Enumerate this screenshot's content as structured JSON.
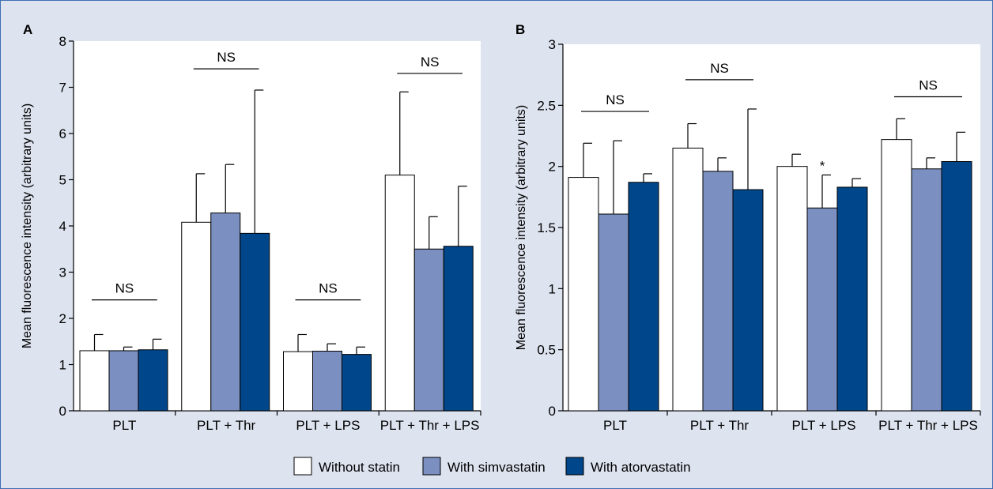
{
  "legend": [
    {
      "label": "Without statin",
      "color": "#ffffff"
    },
    {
      "label": "With simvastatin",
      "color": "#7b8fc0"
    },
    {
      "label": "With atorvastatin",
      "color": "#00468b"
    }
  ],
  "chart_data": [
    {
      "panel": "A",
      "type": "bar",
      "ylabel": "Mean fluorescence intensity (arbitrary units)",
      "ylim": [
        0,
        8
      ],
      "yticks": [
        "0",
        "1",
        "2",
        "3",
        "4",
        "5",
        "6",
        "7",
        "8"
      ],
      "categories": [
        "PLT",
        "PLT + Thr",
        "PLT + LPS",
        "PLT + Thr + LPS"
      ],
      "series": [
        {
          "name": "Without statin",
          "values": [
            1.3,
            4.08,
            1.28,
            5.1
          ],
          "errors": [
            0.35,
            1.05,
            0.37,
            1.8
          ]
        },
        {
          "name": "With simvastatin",
          "values": [
            1.3,
            4.28,
            1.29,
            3.5
          ],
          "errors": [
            0.08,
            1.05,
            0.16,
            0.7
          ]
        },
        {
          "name": "With atorvastatin",
          "values": [
            1.32,
            3.84,
            1.22,
            3.56
          ],
          "errors": [
            0.23,
            3.1,
            0.16,
            1.3
          ]
        }
      ],
      "significance": [
        {
          "group": 0,
          "label": "NS",
          "level": 2.4
        },
        {
          "group": 1,
          "label": "NS",
          "level": 7.4
        },
        {
          "group": 2,
          "label": "NS",
          "level": 2.4
        },
        {
          "group": 3,
          "label": "NS",
          "level": 7.3
        }
      ],
      "annotations": []
    },
    {
      "panel": "B",
      "type": "bar",
      "ylabel": "Mean fluorescence intensity (arbitrary units)",
      "ylim": [
        0,
        3
      ],
      "yticks": [
        "0",
        "0.5",
        "1",
        "1.5",
        "2",
        "2.5",
        "3"
      ],
      "categories": [
        "PLT",
        "PLT + Thr",
        "PLT + LPS",
        "PLT + Thr + LPS"
      ],
      "series": [
        {
          "name": "Without statin",
          "values": [
            1.91,
            2.15,
            2.0,
            2.22
          ],
          "errors": [
            0.28,
            0.2,
            0.1,
            0.17
          ]
        },
        {
          "name": "With simvastatin",
          "values": [
            1.61,
            1.96,
            1.66,
            1.98
          ],
          "errors": [
            0.6,
            0.11,
            0.27,
            0.09
          ]
        },
        {
          "name": "With atorvastatin",
          "values": [
            1.87,
            1.81,
            1.83,
            2.04
          ],
          "errors": [
            0.07,
            0.66,
            0.07,
            0.24
          ]
        }
      ],
      "significance": [
        {
          "group": 0,
          "label": "NS",
          "level": 2.45
        },
        {
          "group": 1,
          "label": "NS",
          "level": 2.71
        },
        {
          "group": 3,
          "label": "NS",
          "level": 2.57
        }
      ],
      "annotations": [
        {
          "group": 2,
          "series": 1,
          "label": "*"
        }
      ]
    }
  ]
}
